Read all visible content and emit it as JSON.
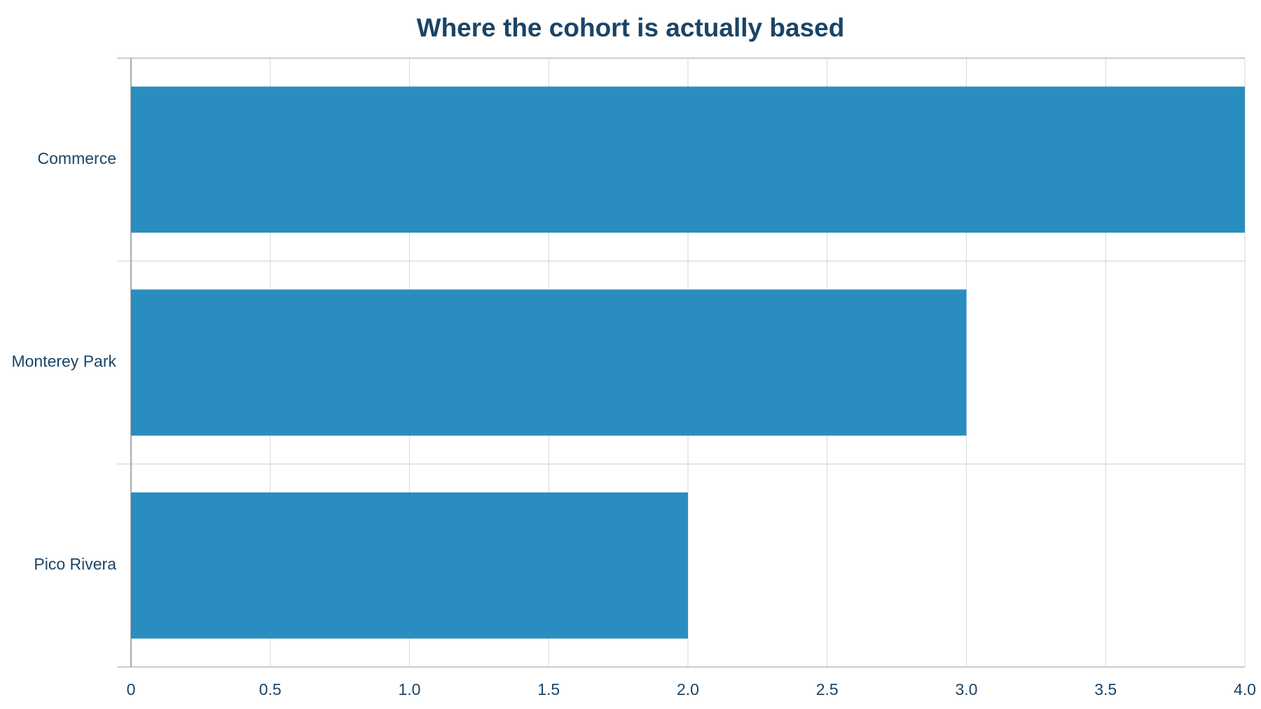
{
  "chart_data": {
    "type": "hbar",
    "title": "Where the cohort is actually based",
    "categories": [
      "Commerce",
      "Monterey Park",
      "Pico Rivera"
    ],
    "values": [
      4,
      3,
      2
    ],
    "color": "#2a8dc0",
    "xlim": [
      0,
      4
    ],
    "xticks": [
      0,
      0.5,
      {
        "value": 1,
        "label": "1.0"
      },
      1.5,
      {
        "value": 2,
        "label": "2.0"
      },
      2.5,
      {
        "value": 3,
        "label": "3.0"
      },
      3.5,
      {
        "value": 4,
        "label": "4.0"
      }
    ],
    "grid": true
  }
}
